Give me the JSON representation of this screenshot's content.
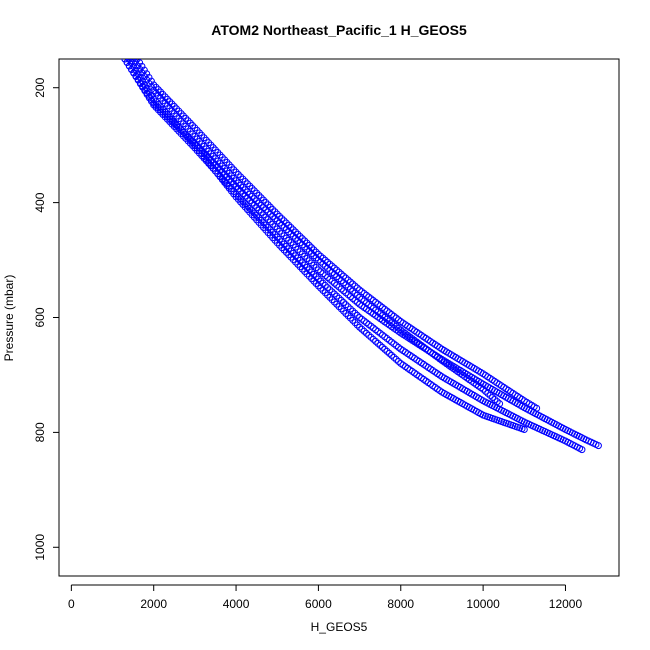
{
  "chart_data": {
    "type": "scatter",
    "title": "ATOM2 Northeast_Pacific_1 H_GEOS5",
    "xlabel": "H_GEOS5",
    "ylabel": "Pressure (mbar)",
    "xlim": [
      -300,
      13300
    ],
    "ylim": [
      1050,
      150
    ],
    "y_reversed": true,
    "x_ticks": [
      0,
      2000,
      4000,
      6000,
      8000,
      10000,
      12000
    ],
    "x_tick_labels": [
      "0",
      "2000",
      "4000",
      "6000",
      "8000",
      "10000",
      "12000"
    ],
    "y_ticks": [
      200,
      400,
      600,
      800,
      1000
    ],
    "y_tick_labels": [
      "200",
      "400",
      "600",
      "800",
      "1000"
    ],
    "marker": "open-circle",
    "color": "#0000ff",
    "grid": false,
    "series": [
      {
        "x": [
          1300,
          2000,
          3000,
          4000,
          5000,
          6000,
          7000,
          8000,
          9000,
          10000,
          11000,
          12000,
          12500,
          12800
        ],
        "y": [
          150,
          227,
          297,
          372,
          446,
          517,
          577,
          627,
          673,
          716,
          757,
          795,
          813,
          823
        ]
      },
      {
        "x": [
          1300,
          2000,
          3000,
          4000,
          5000,
          6000,
          7000,
          8000,
          9000,
          10000,
          11000,
          12000,
          12400
        ],
        "y": [
          150,
          230,
          305,
          385,
          460,
          533,
          600,
          655,
          703,
          745,
          782,
          815,
          830
        ]
      },
      {
        "x": [
          1400,
          2000,
          3000,
          4000,
          5000,
          6000,
          7000,
          8000,
          9000,
          10000,
          11000
        ],
        "y": [
          150,
          220,
          300,
          390,
          470,
          545,
          617,
          680,
          730,
          770,
          795
        ]
      },
      {
        "x": [
          1500,
          2000,
          3000,
          4000,
          5000,
          6000,
          7000,
          8000,
          9000,
          10000,
          10400
        ],
        "y": [
          150,
          205,
          285,
          362,
          432,
          500,
          565,
          622,
          675,
          725,
          750
        ]
      },
      {
        "x": [
          1600,
          2000,
          3000,
          4000,
          5000,
          6000,
          7000,
          8000,
          9000,
          10000,
          11000,
          11300
        ],
        "y": [
          150,
          195,
          270,
          347,
          420,
          490,
          552,
          607,
          655,
          698,
          745,
          758
        ]
      }
    ]
  }
}
